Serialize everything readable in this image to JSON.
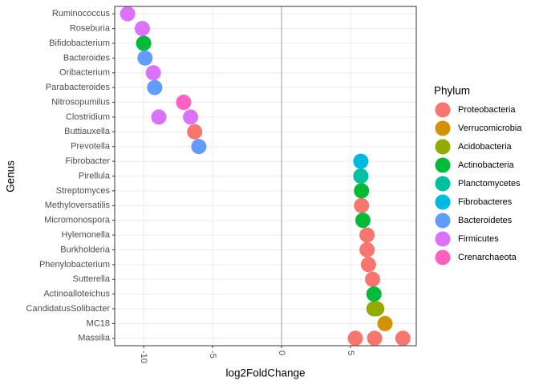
{
  "chart_data": {
    "type": "scatter",
    "x_label": "log2FoldChange",
    "y_label": "Genus",
    "legend_title": "Phylum",
    "categories": [
      "Massilia",
      "MC18",
      "CandidatusSolibacter",
      "Actinoalloteichus",
      "Sutterella",
      "Phenylobacterium",
      "Burkholderia",
      "Hylemonella",
      "Micromonospora",
      "Methyloversatilis",
      "Streptomyces",
      "Pirellula",
      "Fibrobacter",
      "Prevotella",
      "Buttiauxella",
      "Clostridium",
      "Nitrosopumilus",
      "Parabacteroides",
      "Oribacterium",
      "Bacteroides",
      "Bifidobacterium",
      "Roseburia",
      "Ruminococcus"
    ],
    "xlim": [
      -12.1,
      9.77
    ],
    "xticks": [
      -10,
      -5,
      0,
      5
    ],
    "grid": true,
    "legend": "right",
    "series": [
      {
        "name": "Proteobacteria",
        "color": "#F8766D",
        "x": [
          -6.3,
          5.8,
          6.2,
          6.2,
          6.3,
          6.6,
          5.35,
          6.75,
          8.8
        ],
        "y": [
          "Buttiauxella",
          "Methyloversatilis",
          "Hylemonella",
          "Burkholderia",
          "Phenylobacterium",
          "Sutterella",
          "Massilia",
          "Massilia",
          "Massilia"
        ]
      },
      {
        "name": "Verrucomicrobia",
        "color": "#D39200",
        "x": [
          7.5
        ],
        "y": [
          "MC18"
        ]
      },
      {
        "name": "Acidobacteria",
        "color": "#93AA00",
        "x": [
          6.7,
          6.9
        ],
        "y": [
          "CandidatusSolibacter",
          "CandidatusSolibacter"
        ]
      },
      {
        "name": "Actinobacteria",
        "color": "#00BA38",
        "x": [
          -10.0,
          5.8,
          5.9,
          6.7
        ],
        "y": [
          "Bifidobacterium",
          "Streptomyces",
          "Micromonospora",
          "Actinoalloteichus"
        ]
      },
      {
        "name": "Planctomycetes",
        "color": "#00C19F",
        "x": [
          5.75
        ],
        "y": [
          "Pirellula"
        ]
      },
      {
        "name": "Fibrobacteres",
        "color": "#00B9E3",
        "x": [
          5.75
        ],
        "y": [
          "Fibrobacter"
        ]
      },
      {
        "name": "Bacteroidetes",
        "color": "#619CFF",
        "x": [
          -9.9,
          -9.2,
          -6.0
        ],
        "y": [
          "Bacteroides",
          "Parabacteroides",
          "Prevotella"
        ]
      },
      {
        "name": "Firmicutes",
        "color": "#DB72FB",
        "x": [
          -11.16,
          -10.1,
          -9.3,
          -8.9,
          -6.6
        ],
        "y": [
          "Ruminococcus",
          "Roseburia",
          "Oribacterium",
          "Clostridium",
          "Clostridium"
        ]
      },
      {
        "name": "Crenarchaeota",
        "color": "#FF61C3",
        "x": [
          -7.1
        ],
        "y": [
          "Nitrosopumilus"
        ]
      }
    ]
  }
}
